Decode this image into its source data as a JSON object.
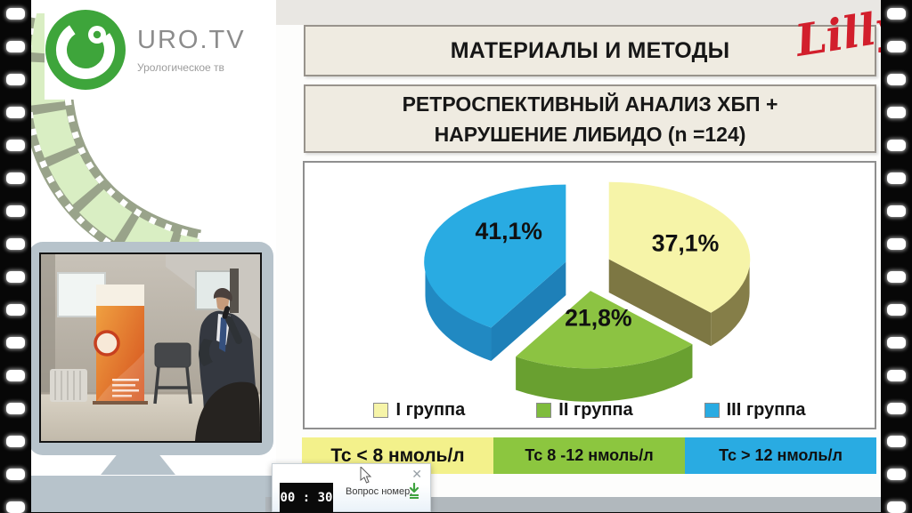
{
  "branding": {
    "channel_name": "URO.TV",
    "channel_tagline": "Урологическое тв",
    "sponsor_name": "Lilly"
  },
  "slide": {
    "title": "МАТЕРИАЛЫ И МЕТОДЫ",
    "subtitle_line1": "РЕТРОСПЕКТИВНЫЙ АНАЛИЗ ХБП +",
    "subtitle_line2": "НАРУШЕНИЕ ЛИБИДО  (n =124)"
  },
  "chart_data": {
    "type": "pie",
    "style": "3d-exploded",
    "title": "",
    "unit": "%",
    "labels": [
      "I группа",
      "II группа",
      "III группа"
    ],
    "values": [
      37.1,
      21.8,
      41.1
    ],
    "value_labels": [
      "37,1%",
      "21,8%",
      "41,1%"
    ],
    "colors": [
      "#F6F4A8",
      "#8CC342",
      "#29ABE2"
    ],
    "side_colors": [
      "#7D7743",
      "#69A030",
      "#1E80B8"
    ],
    "legend_position": "bottom"
  },
  "threshold_bar": {
    "items": [
      {
        "label": "Тс < 8 нмоль/л",
        "color": "#F3F18B"
      },
      {
        "label": "Тс  8 -12 нмоль/л",
        "color": "#8CC63F"
      },
      {
        "label": "Тс > 12 нмоль/л",
        "color": "#29ABE2"
      }
    ]
  },
  "popup": {
    "timer": "00 : 30",
    "question_label": "Вопрос номер:",
    "close_glyph": "✕"
  }
}
